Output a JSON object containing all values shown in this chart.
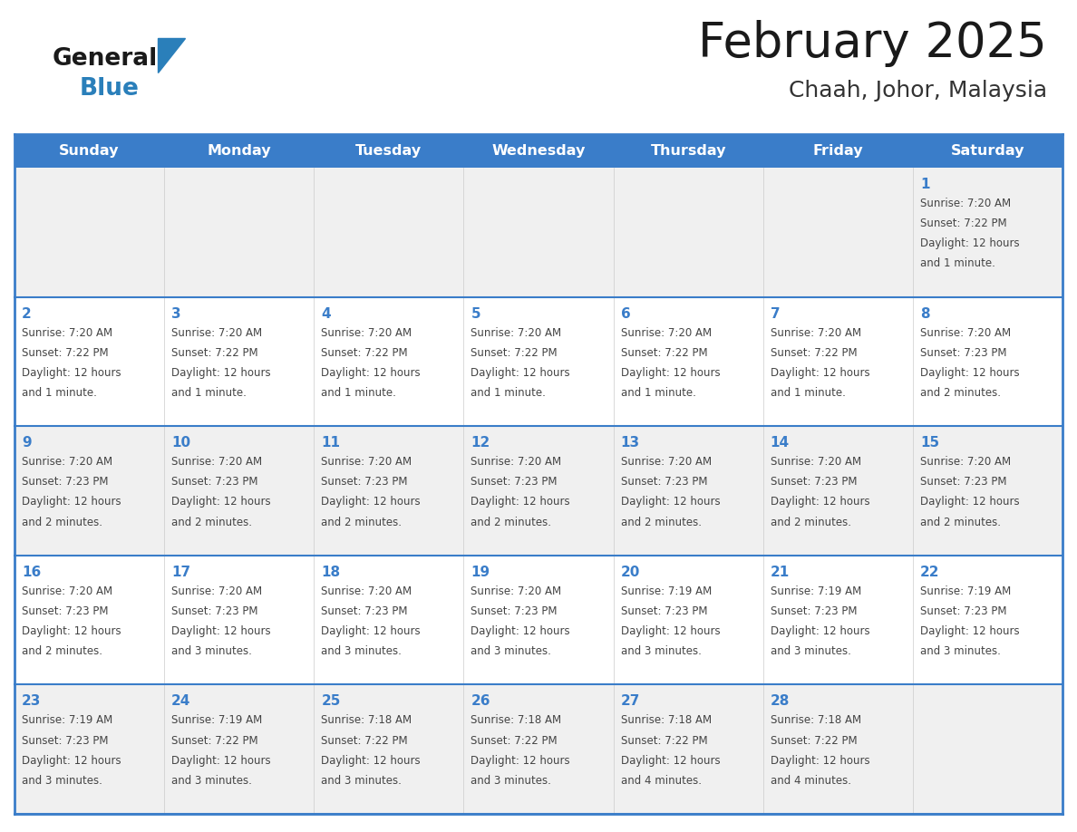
{
  "title": "February 2025",
  "subtitle": "Chaah, Johor, Malaysia",
  "days_of_week": [
    "Sunday",
    "Monday",
    "Tuesday",
    "Wednesday",
    "Thursday",
    "Friday",
    "Saturday"
  ],
  "header_bg": "#3A7DC9",
  "header_text": "#FFFFFF",
  "cell_bg_odd": "#F0F0F0",
  "cell_bg_even": "#FFFFFF",
  "day_num_color": "#3A7DC9",
  "info_text_color": "#444444",
  "border_color": "#3A7DC9",
  "divider_color": "#3A7DC9",
  "calendar_data": [
    [
      null,
      null,
      null,
      null,
      null,
      null,
      {
        "day": 1,
        "sunrise": "7:20 AM",
        "sunset": "7:22 PM",
        "daylight": "12 hours and 1 minute."
      }
    ],
    [
      {
        "day": 2,
        "sunrise": "7:20 AM",
        "sunset": "7:22 PM",
        "daylight": "12 hours and 1 minute."
      },
      {
        "day": 3,
        "sunrise": "7:20 AM",
        "sunset": "7:22 PM",
        "daylight": "12 hours and 1 minute."
      },
      {
        "day": 4,
        "sunrise": "7:20 AM",
        "sunset": "7:22 PM",
        "daylight": "12 hours and 1 minute."
      },
      {
        "day": 5,
        "sunrise": "7:20 AM",
        "sunset": "7:22 PM",
        "daylight": "12 hours and 1 minute."
      },
      {
        "day": 6,
        "sunrise": "7:20 AM",
        "sunset": "7:22 PM",
        "daylight": "12 hours and 1 minute."
      },
      {
        "day": 7,
        "sunrise": "7:20 AM",
        "sunset": "7:22 PM",
        "daylight": "12 hours and 1 minute."
      },
      {
        "day": 8,
        "sunrise": "7:20 AM",
        "sunset": "7:23 PM",
        "daylight": "12 hours and 2 minutes."
      }
    ],
    [
      {
        "day": 9,
        "sunrise": "7:20 AM",
        "sunset": "7:23 PM",
        "daylight": "12 hours and 2 minutes."
      },
      {
        "day": 10,
        "sunrise": "7:20 AM",
        "sunset": "7:23 PM",
        "daylight": "12 hours and 2 minutes."
      },
      {
        "day": 11,
        "sunrise": "7:20 AM",
        "sunset": "7:23 PM",
        "daylight": "12 hours and 2 minutes."
      },
      {
        "day": 12,
        "sunrise": "7:20 AM",
        "sunset": "7:23 PM",
        "daylight": "12 hours and 2 minutes."
      },
      {
        "day": 13,
        "sunrise": "7:20 AM",
        "sunset": "7:23 PM",
        "daylight": "12 hours and 2 minutes."
      },
      {
        "day": 14,
        "sunrise": "7:20 AM",
        "sunset": "7:23 PM",
        "daylight": "12 hours and 2 minutes."
      },
      {
        "day": 15,
        "sunrise": "7:20 AM",
        "sunset": "7:23 PM",
        "daylight": "12 hours and 2 minutes."
      }
    ],
    [
      {
        "day": 16,
        "sunrise": "7:20 AM",
        "sunset": "7:23 PM",
        "daylight": "12 hours and 2 minutes."
      },
      {
        "day": 17,
        "sunrise": "7:20 AM",
        "sunset": "7:23 PM",
        "daylight": "12 hours and 3 minutes."
      },
      {
        "day": 18,
        "sunrise": "7:20 AM",
        "sunset": "7:23 PM",
        "daylight": "12 hours and 3 minutes."
      },
      {
        "day": 19,
        "sunrise": "7:20 AM",
        "sunset": "7:23 PM",
        "daylight": "12 hours and 3 minutes."
      },
      {
        "day": 20,
        "sunrise": "7:19 AM",
        "sunset": "7:23 PM",
        "daylight": "12 hours and 3 minutes."
      },
      {
        "day": 21,
        "sunrise": "7:19 AM",
        "sunset": "7:23 PM",
        "daylight": "12 hours and 3 minutes."
      },
      {
        "day": 22,
        "sunrise": "7:19 AM",
        "sunset": "7:23 PM",
        "daylight": "12 hours and 3 minutes."
      }
    ],
    [
      {
        "day": 23,
        "sunrise": "7:19 AM",
        "sunset": "7:23 PM",
        "daylight": "12 hours and 3 minutes."
      },
      {
        "day": 24,
        "sunrise": "7:19 AM",
        "sunset": "7:22 PM",
        "daylight": "12 hours and 3 minutes."
      },
      {
        "day": 25,
        "sunrise": "7:18 AM",
        "sunset": "7:22 PM",
        "daylight": "12 hours and 3 minutes."
      },
      {
        "day": 26,
        "sunrise": "7:18 AM",
        "sunset": "7:22 PM",
        "daylight": "12 hours and 3 minutes."
      },
      {
        "day": 27,
        "sunrise": "7:18 AM",
        "sunset": "7:22 PM",
        "daylight": "12 hours and 4 minutes."
      },
      {
        "day": 28,
        "sunrise": "7:18 AM",
        "sunset": "7:22 PM",
        "daylight": "12 hours and 4 minutes."
      },
      null
    ]
  ],
  "logo_text_general": "General",
  "logo_text_blue": "Blue",
  "logo_triangle_color": "#2A7FBA",
  "logo_general_color": "#1a1a1a",
  "title_color": "#1a1a1a",
  "subtitle_color": "#333333"
}
